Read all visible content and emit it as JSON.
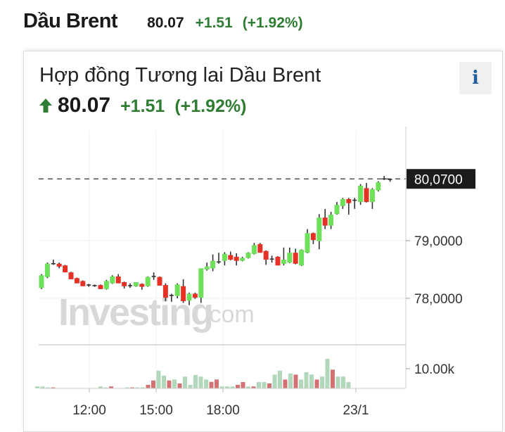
{
  "header": {
    "name": "Dầu Brent",
    "price": "80.07",
    "change": "+1.51",
    "change_pct": "(+1.92%)"
  },
  "card": {
    "title": "Hợp đồng Tương lai Dầu Brent",
    "info_label": "i",
    "arrow_icon": "arrow-up-icon",
    "price": "80.07",
    "change": "+1.51",
    "change_pct": "(+1.92%)"
  },
  "colors": {
    "up": "#6ee05a",
    "down": "#e63226",
    "vol_up": "#b2d8bb",
    "vol_down": "#d27272",
    "positive_text": "#2e7d32",
    "info_icon": "#1f5f9e"
  },
  "watermark": {
    "brand": "Investing",
    "suffix": ".com"
  },
  "chart_data": {
    "type": "candlestick",
    "ylim": [
      77.6,
      80.4
    ],
    "y_ticks": [
      {
        "value": 79,
        "label": "79,0000"
      },
      {
        "value": 78,
        "label": "78,0000"
      }
    ],
    "x_ticks": [
      "12:00",
      "15:00",
      "18:00",
      "23/1"
    ],
    "last_price": 80.07,
    "last_price_label": "80,0700",
    "volume_tick": {
      "value": 10,
      "label": "10.00k"
    },
    "grid": true,
    "candles_ohlc": [
      [
        78.18,
        78.42,
        78.16,
        78.4
      ],
      [
        78.37,
        78.62,
        78.35,
        78.6
      ],
      [
        78.6,
        78.67,
        78.58,
        78.6
      ],
      [
        78.6,
        78.62,
        78.52,
        78.55
      ],
      [
        78.57,
        78.58,
        78.45,
        78.45
      ],
      [
        78.45,
        78.46,
        78.33,
        78.33
      ],
      [
        78.35,
        78.36,
        78.26,
        78.26
      ],
      [
        78.3,
        78.31,
        78.21,
        78.21
      ],
      [
        78.23,
        78.25,
        78.2,
        78.23
      ],
      [
        78.22,
        78.24,
        78.2,
        78.22
      ],
      [
        78.23,
        78.24,
        78.16,
        78.16
      ],
      [
        78.16,
        78.32,
        78.15,
        78.3
      ],
      [
        78.26,
        78.4,
        78.25,
        78.38
      ],
      [
        78.38,
        78.42,
        78.26,
        78.26
      ],
      [
        78.28,
        78.29,
        78.17,
        78.21
      ],
      [
        78.22,
        78.26,
        78.18,
        78.22
      ],
      [
        78.21,
        78.28,
        78.2,
        78.28
      ],
      [
        78.25,
        78.26,
        78.15,
        78.2
      ],
      [
        78.21,
        78.38,
        78.2,
        78.37
      ],
      [
        78.38,
        78.45,
        78.32,
        78.38
      ],
      [
        78.37,
        78.38,
        78.22,
        78.22
      ],
      [
        78.23,
        78.26,
        77.95,
        78.01
      ],
      [
        78.05,
        78.08,
        77.94,
        78.05
      ],
      [
        78.04,
        78.26,
        78.0,
        78.24
      ],
      [
        78.21,
        78.33,
        77.92,
        77.95
      ],
      [
        77.96,
        78.1,
        77.88,
        78.08
      ],
      [
        78.08,
        78.1,
        77.99,
        78.01
      ],
      [
        78.01,
        78.52,
        77.92,
        78.52
      ],
      [
        78.5,
        78.62,
        78.48,
        78.55
      ],
      [
        78.52,
        78.76,
        78.47,
        78.65
      ],
      [
        78.63,
        78.79,
        78.6,
        78.63
      ],
      [
        78.65,
        78.8,
        78.57,
        78.77
      ],
      [
        78.75,
        78.81,
        78.66,
        78.67
      ],
      [
        78.72,
        78.78,
        78.57,
        78.65
      ],
      [
        78.65,
        78.72,
        78.64,
        78.7
      ],
      [
        78.7,
        78.8,
        78.69,
        78.79
      ],
      [
        78.77,
        78.96,
        78.76,
        78.92
      ],
      [
        78.94,
        78.96,
        78.79,
        78.79
      ],
      [
        78.82,
        78.83,
        78.58,
        78.67
      ],
      [
        78.68,
        78.74,
        78.62,
        78.68
      ],
      [
        78.72,
        78.73,
        78.57,
        78.57
      ],
      [
        78.6,
        78.88,
        78.57,
        78.67
      ],
      [
        78.62,
        78.88,
        78.61,
        78.79
      ],
      [
        78.79,
        78.86,
        78.59,
        78.6
      ],
      [
        78.57,
        78.85,
        78.56,
        78.84
      ],
      [
        78.79,
        79.2,
        78.78,
        79.13
      ],
      [
        79.13,
        79.14,
        78.94,
        79.01
      ],
      [
        78.99,
        79.46,
        78.85,
        79.4
      ],
      [
        79.4,
        79.55,
        79.2,
        79.26
      ],
      [
        79.26,
        79.5,
        79.2,
        79.45
      ],
      [
        79.46,
        79.67,
        79.45,
        79.62
      ],
      [
        79.6,
        79.74,
        79.55,
        79.72
      ],
      [
        79.72,
        79.74,
        79.45,
        79.65
      ],
      [
        79.7,
        79.74,
        79.55,
        79.7
      ],
      [
        79.67,
        79.98,
        79.62,
        79.95
      ],
      [
        79.91,
        80.0,
        79.66,
        79.67
      ],
      [
        79.67,
        79.91,
        79.55,
        79.89
      ],
      [
        79.87,
        80.03,
        79.85,
        80.01
      ],
      [
        80.07,
        80.12,
        80.05,
        80.07
      ],
      [
        80.06,
        80.07,
        80.02,
        80.06
      ]
    ],
    "volume_k": [
      [
        1,
        "up"
      ],
      [
        1,
        "up"
      ],
      [
        0.5,
        "up"
      ],
      [
        0.5,
        "down"
      ],
      [
        0,
        "up"
      ],
      [
        0,
        "up"
      ],
      [
        0,
        "up"
      ],
      [
        0,
        "up"
      ],
      [
        0,
        "up"
      ],
      [
        0,
        "up"
      ],
      [
        0,
        "up"
      ],
      [
        0,
        "up"
      ],
      [
        1,
        "up"
      ],
      [
        0.5,
        "up"
      ],
      [
        1,
        "down"
      ],
      [
        0,
        "up"
      ],
      [
        0,
        "up"
      ],
      [
        0.5,
        "up"
      ],
      [
        0.5,
        "down"
      ],
      [
        0.5,
        "up"
      ],
      [
        0.5,
        "up"
      ],
      [
        1.8,
        "down"
      ],
      [
        4,
        "down"
      ],
      [
        9,
        "up"
      ],
      [
        6.5,
        "up"
      ],
      [
        4,
        "down"
      ],
      [
        4.5,
        "up"
      ],
      [
        2.5,
        "down"
      ],
      [
        6,
        "up"
      ],
      [
        1.8,
        "up"
      ],
      [
        6.8,
        "up"
      ],
      [
        6,
        "up"
      ],
      [
        4.5,
        "up"
      ],
      [
        3.3,
        "down"
      ],
      [
        4.5,
        "down"
      ],
      [
        1,
        "up"
      ],
      [
        1,
        "up"
      ],
      [
        1,
        "up"
      ],
      [
        1.8,
        "down"
      ],
      [
        3.2,
        "down"
      ],
      [
        1,
        "up"
      ],
      [
        1,
        "down"
      ],
      [
        3.2,
        "up"
      ],
      [
        3.2,
        "up"
      ],
      [
        2.5,
        "down"
      ],
      [
        7,
        "up"
      ],
      [
        9,
        "up"
      ],
      [
        4.5,
        "down"
      ],
      [
        7.5,
        "up"
      ],
      [
        7,
        "down"
      ],
      [
        4.5,
        "up"
      ],
      [
        8.2,
        "up"
      ],
      [
        7,
        "up"
      ],
      [
        4.5,
        "down"
      ],
      [
        6,
        "up"
      ],
      [
        15,
        "up"
      ],
      [
        9.5,
        "down"
      ],
      [
        6,
        "up"
      ],
      [
        6,
        "up"
      ],
      [
        3.2,
        "up"
      ]
    ]
  }
}
